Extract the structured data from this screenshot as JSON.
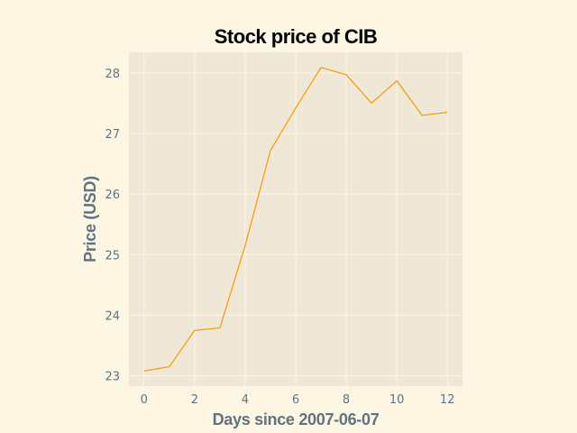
{
  "chart_data": {
    "type": "line",
    "title": "Stock price of CIB",
    "xlabel": "Days since 2007-06-07",
    "ylabel": "Price (USD)",
    "x": [
      0,
      1,
      2,
      3,
      4,
      5,
      6,
      7,
      8,
      9,
      10,
      11,
      12
    ],
    "series": [
      {
        "values": [
          23.08,
          23.15,
          23.75,
          23.79,
          25.15,
          26.72,
          27.42,
          28.09,
          27.97,
          27.5,
          27.87,
          27.3,
          27.35
        ],
        "color": "#f5a00a"
      }
    ],
    "xlim": [
      -0.6,
      12.6
    ],
    "ylim": [
      22.83,
      28.34
    ],
    "xticks": [
      0,
      2,
      4,
      6,
      8,
      10,
      12
    ],
    "yticks": [
      23,
      24,
      25,
      26,
      27,
      28
    ],
    "xtick_labels": [
      "0",
      "2",
      "4",
      "6",
      "8",
      "10",
      "12"
    ],
    "ytick_labels": [
      "23",
      "24",
      "25",
      "26",
      "27",
      "28"
    ],
    "grid": true,
    "colors": {
      "page_background": "#fdf6e3",
      "plot_background": "#efe8d6",
      "grid": "#fdf6e3",
      "tick_text": "#5f7480",
      "title_text": "#000000"
    }
  }
}
